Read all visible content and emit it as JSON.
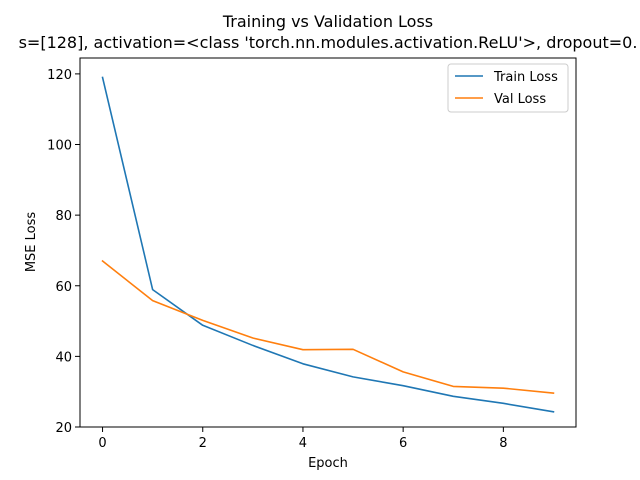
{
  "chart_data": {
    "type": "line",
    "title": "Training vs Validation Loss",
    "subtitle": "s=[128], activation=<class 'torch.nn.modules.activation.ReLU'>, dropout=0.",
    "xlabel": "Epoch",
    "ylabel": "MSE Loss",
    "xlim": [
      -0.45,
      9.45
    ],
    "ylim": [
      20,
      124.5
    ],
    "xticks": [
      0,
      2,
      4,
      6,
      8
    ],
    "yticks": [
      20,
      40,
      60,
      80,
      100,
      120
    ],
    "grid": false,
    "legend_position": "upper right",
    "x": [
      0,
      1,
      2,
      3,
      4,
      5,
      6,
      7,
      8,
      9
    ],
    "series": [
      {
        "name": "Train Loss",
        "color": "#1f77b4",
        "values": [
          119.0,
          58.9,
          48.8,
          43.1,
          37.9,
          34.2,
          31.7,
          28.7,
          26.7,
          24.3
        ]
      },
      {
        "name": "Val Loss",
        "color": "#ff7f0e",
        "values": [
          67.0,
          55.8,
          50.2,
          45.2,
          41.9,
          42.0,
          35.6,
          31.5,
          31.0,
          29.6
        ]
      }
    ]
  }
}
